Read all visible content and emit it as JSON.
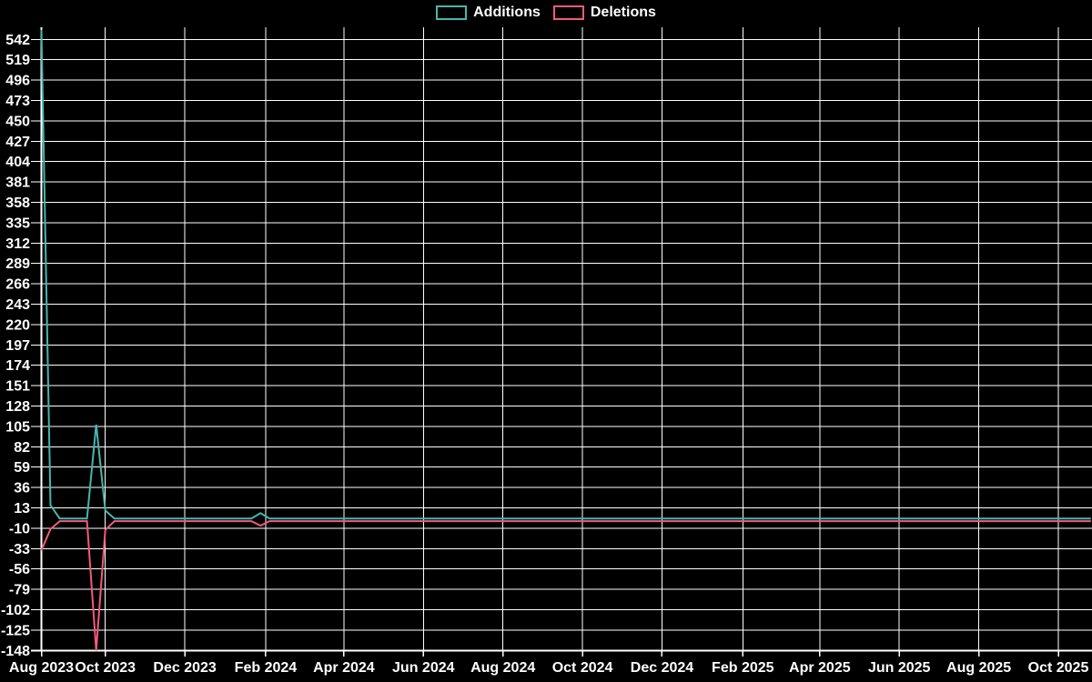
{
  "legend": {
    "items": [
      {
        "label": "Additions",
        "color": "#45b7ad"
      },
      {
        "label": "Deletions",
        "color": "#f4597e"
      }
    ]
  },
  "chart_data": {
    "type": "line",
    "title": "",
    "background_color": "#000000",
    "grid_color": "#ffffff",
    "text_color": "#ffffff",
    "legend_position": "top-center",
    "grid": "on",
    "x_axis": {
      "ticks": [
        {
          "label": "Aug 2023",
          "date": "2023-08-13"
        },
        {
          "label": "Oct 2023",
          "date": "2023-10-01"
        },
        {
          "label": "Dec 2023",
          "date": "2023-12-01"
        },
        {
          "label": "Feb 2024",
          "date": "2024-02-01"
        },
        {
          "label": "Apr 2024",
          "date": "2024-04-01"
        },
        {
          "label": "Jun 2024",
          "date": "2024-06-01"
        },
        {
          "label": "Aug 2024",
          "date": "2024-08-01"
        },
        {
          "label": "Oct 2024",
          "date": "2024-10-01"
        },
        {
          "label": "Dec 2024",
          "date": "2024-12-01"
        },
        {
          "label": "Feb 2025",
          "date": "2025-02-01"
        },
        {
          "label": "Apr 2025",
          "date": "2025-04-01"
        },
        {
          "label": "Jun 2025",
          "date": "2025-06-01"
        },
        {
          "label": "Aug 2025",
          "date": "2025-08-01"
        },
        {
          "label": "Oct 2025",
          "date": "2025-10-01"
        }
      ]
    },
    "y_axis": {
      "ticks": [
        542,
        519,
        496,
        473,
        450,
        427,
        404,
        381,
        358,
        335,
        312,
        289,
        266,
        243,
        220,
        197,
        174,
        151,
        128,
        105,
        82,
        59,
        36,
        13,
        -10,
        -33,
        -56,
        -79,
        -102,
        -125,
        -148
      ],
      "min": -148,
      "max": 553
    },
    "series": [
      {
        "name": "Additions",
        "color": "#45b7ad",
        "points": [
          [
            "2023-08-13",
            553
          ],
          [
            "2023-08-20",
            16
          ],
          [
            "2023-08-27",
            1
          ],
          [
            "2023-09-17",
            1
          ],
          [
            "2023-09-24",
            107
          ],
          [
            "2023-10-01",
            10
          ],
          [
            "2023-10-08",
            1
          ],
          [
            "2024-01-21",
            1
          ],
          [
            "2024-01-28",
            7
          ],
          [
            "2024-02-04",
            1
          ],
          [
            "2025-10-26",
            1
          ]
        ]
      },
      {
        "name": "Deletions",
        "color": "#f4597e",
        "points": [
          [
            "2023-08-13",
            -35
          ],
          [
            "2023-08-20",
            -11
          ],
          [
            "2023-08-27",
            -2
          ],
          [
            "2023-09-17",
            -2
          ],
          [
            "2023-09-24",
            -148
          ],
          [
            "2023-10-01",
            -12
          ],
          [
            "2023-10-08",
            -2
          ],
          [
            "2024-01-21",
            -2
          ],
          [
            "2024-01-28",
            -7
          ],
          [
            "2024-02-04",
            -2
          ],
          [
            "2025-10-26",
            -2
          ]
        ]
      }
    ]
  }
}
